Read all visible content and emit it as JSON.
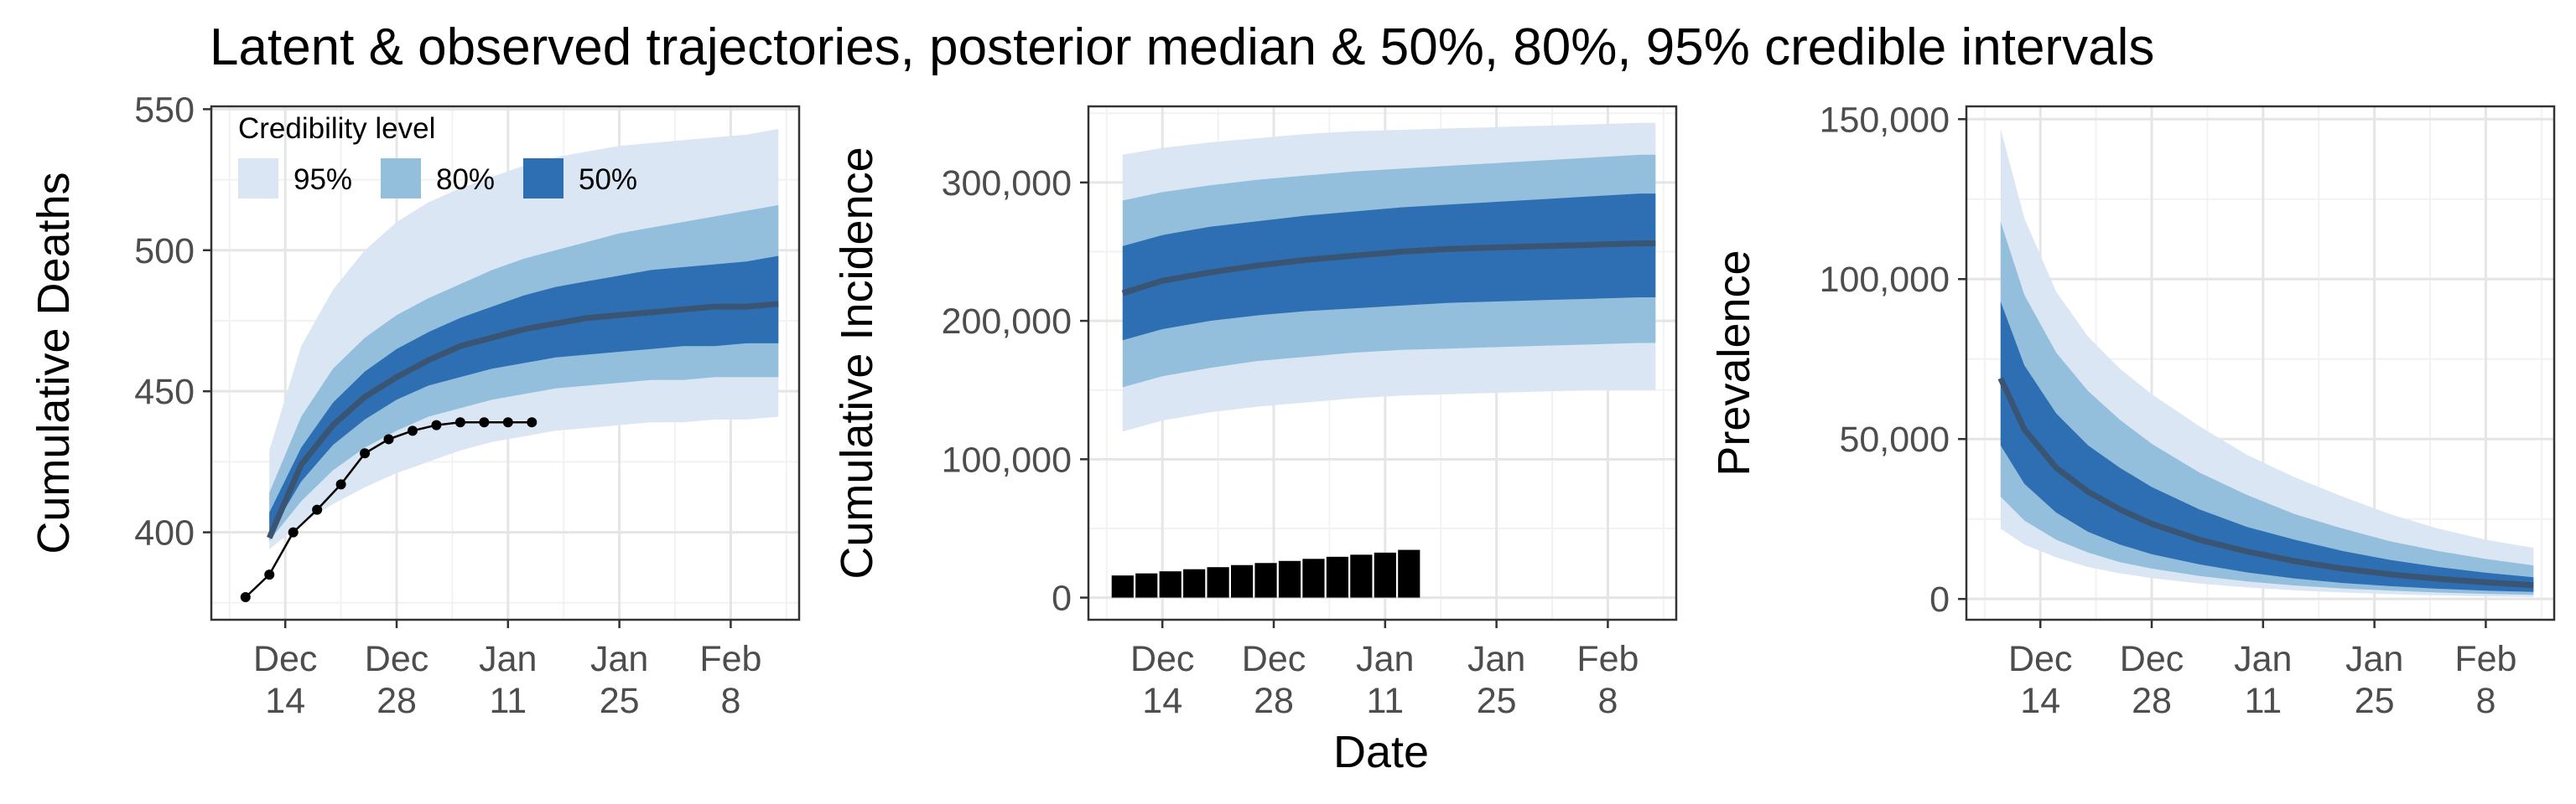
{
  "title": "Latent & observed trajectories, posterior median & 50%, 80%, 95% credible intervals",
  "xlabel": "Date",
  "colors": {
    "band95": "#dae6f4",
    "band80": "#93bfdd",
    "band50": "#2e6eb3",
    "median": "#3a5573",
    "observed": "#000000",
    "grid_major": "#e5e5e5",
    "grid_minor": "#f2f2f2",
    "panel_border": "#333333"
  },
  "legend": {
    "title": "Credibility level",
    "items": [
      {
        "label": "95%",
        "color": "#dae6f4"
      },
      {
        "label": "80%",
        "color": "#93bfdd"
      },
      {
        "label": "50%",
        "color": "#2e6eb3"
      }
    ]
  },
  "x_ticks": [
    {
      "day": 14,
      "line1": "Dec",
      "line2": "14"
    },
    {
      "day": 28,
      "line1": "Dec",
      "line2": "28"
    },
    {
      "day": 42,
      "line1": "Jan",
      "line2": "11"
    },
    {
      "day": 56,
      "line1": "Jan",
      "line2": "25"
    },
    {
      "day": 70,
      "line1": "Feb",
      "line2": "8"
    }
  ],
  "chart_data": [
    {
      "type": "area",
      "ylabel": "Cumulative Deaths",
      "xlim": [
        4.7,
        78.6
      ],
      "ylim": [
        369,
        551
      ],
      "y_ticks": [
        400,
        450,
        500,
        550
      ],
      "x": [
        12,
        16,
        20,
        24,
        28,
        32,
        36,
        40,
        44,
        48,
        52,
        56,
        60,
        64,
        68,
        72,
        76
      ],
      "band95": {
        "lower": [
          394,
          403,
          410,
          416,
          421,
          425,
          429,
          432,
          434,
          436,
          437,
          438,
          439,
          439,
          440,
          440,
          441
        ],
        "upper": [
          429,
          466,
          486,
          500,
          510,
          517,
          522,
          526,
          530,
          533,
          535,
          537,
          538,
          539,
          540,
          541,
          543
        ]
      },
      "band80": {
        "lower": [
          397,
          411,
          422,
          430,
          436,
          441,
          444,
          447,
          449,
          451,
          452,
          453,
          454,
          454,
          455,
          455,
          455
        ],
        "upper": [
          414,
          441,
          458,
          469,
          477,
          483,
          488,
          493,
          497,
          500,
          503,
          506,
          508,
          510,
          512,
          514,
          516
        ]
      },
      "band50": {
        "lower": [
          399,
          418,
          431,
          440,
          447,
          452,
          455,
          458,
          460,
          462,
          463,
          464,
          465,
          466,
          466,
          467,
          467
        ],
        "upper": [
          407,
          430,
          446,
          457,
          465,
          471,
          476,
          480,
          484,
          487,
          489,
          491,
          493,
          494,
          495,
          496,
          498
        ]
      },
      "median": [
        398,
        424,
        438,
        448,
        455,
        461,
        466,
        469,
        472,
        474,
        476,
        477,
        478,
        479,
        480,
        480,
        481
      ],
      "observed": {
        "x": [
          9,
          12,
          15,
          18,
          21,
          24,
          27,
          30,
          33,
          36,
          39,
          42,
          45
        ],
        "y": [
          377,
          385,
          400,
          408,
          417,
          428,
          433,
          436,
          438,
          439,
          439,
          439,
          439
        ]
      }
    },
    {
      "type": "area",
      "ylabel": "Cumulative Incidence",
      "xlim": [
        4.7,
        78.6
      ],
      "ylim": [
        -16000,
        355000
      ],
      "y_ticks": [
        0,
        100000,
        200000,
        300000
      ],
      "y_tick_labels": [
        "0",
        "100,000",
        "200,000",
        "300,000"
      ],
      "x": [
        9,
        14,
        20,
        26,
        32,
        38,
        44,
        50,
        56,
        62,
        68,
        74,
        76
      ],
      "band95": {
        "lower": [
          120000,
          128000,
          134000,
          138000,
          141000,
          144000,
          146000,
          147000,
          148000,
          149000,
          150000,
          150000,
          150000
        ],
        "upper": [
          320000,
          325000,
          329000,
          332000,
          335000,
          337000,
          338000,
          339000,
          340000,
          341000,
          342000,
          343000,
          343000
        ]
      },
      "band80": {
        "lower": [
          152000,
          160000,
          166000,
          171000,
          174000,
          177000,
          179000,
          180000,
          181000,
          182000,
          183000,
          184000,
          184000
        ],
        "upper": [
          287000,
          293000,
          298000,
          302000,
          305000,
          308000,
          310000,
          312000,
          314000,
          316000,
          318000,
          320000,
          320000
        ]
      },
      "band50": {
        "lower": [
          186000,
          194000,
          200000,
          204000,
          207000,
          209000,
          211000,
          213000,
          214000,
          215000,
          216000,
          217000,
          217000
        ],
        "upper": [
          254000,
          262000,
          268000,
          272000,
          276000,
          279000,
          282000,
          284000,
          286000,
          288000,
          290000,
          292000,
          292000
        ]
      },
      "median": [
        220000,
        229000,
        235000,
        240000,
        244000,
        247000,
        250000,
        252000,
        253000,
        254000,
        255000,
        256000,
        256000
      ],
      "bars": {
        "x": [
          9,
          12,
          15,
          18,
          21,
          24,
          27,
          30,
          33,
          36,
          39,
          42,
          45
        ],
        "values": [
          16000,
          17500,
          19000,
          20500,
          22000,
          23500,
          25000,
          26500,
          28000,
          29500,
          31000,
          32500,
          34500
        ]
      }
    },
    {
      "type": "area",
      "ylabel": "Prevalence",
      "xlim": [
        4.7,
        78.6
      ],
      "ylim": [
        -6500,
        154000
      ],
      "y_ticks": [
        0,
        50000,
        100000,
        150000
      ],
      "y_tick_labels": [
        "0",
        "50,000",
        "100,000",
        "150,000"
      ],
      "x": [
        9,
        12,
        16,
        20,
        24,
        28,
        34,
        40,
        46,
        52,
        58,
        64,
        70,
        76
      ],
      "band95": {
        "lower": [
          22000,
          17000,
          13000,
          10000,
          8000,
          6500,
          4800,
          3600,
          2700,
          2000,
          1500,
          1100,
          800,
          600
        ],
        "upper": [
          147000,
          119000,
          96000,
          82000,
          72000,
          64000,
          54000,
          45000,
          38000,
          32000,
          26500,
          22000,
          18500,
          16000
        ]
      },
      "band80": {
        "lower": [
          32000,
          24500,
          18500,
          14500,
          11500,
          9500,
          7200,
          5500,
          4200,
          3300,
          2600,
          2000,
          1600,
          1300
        ],
        "upper": [
          118000,
          95000,
          77000,
          65000,
          56000,
          48500,
          39500,
          32500,
          26500,
          22000,
          18000,
          15000,
          12500,
          10500
        ]
      },
      "band50": {
        "lower": [
          48000,
          36000,
          27000,
          21000,
          17000,
          14000,
          10800,
          8300,
          6400,
          5000,
          4000,
          3200,
          2600,
          2200
        ],
        "upper": [
          93000,
          73000,
          58000,
          48000,
          41000,
          35000,
          28000,
          22500,
          18500,
          15000,
          12200,
          10000,
          8200,
          6800
        ]
      },
      "median": [
        69000,
        53000,
        41000,
        33500,
        28000,
        23500,
        18500,
        14800,
        11800,
        9500,
        7700,
        6300,
        5200,
        4300
      ]
    }
  ]
}
